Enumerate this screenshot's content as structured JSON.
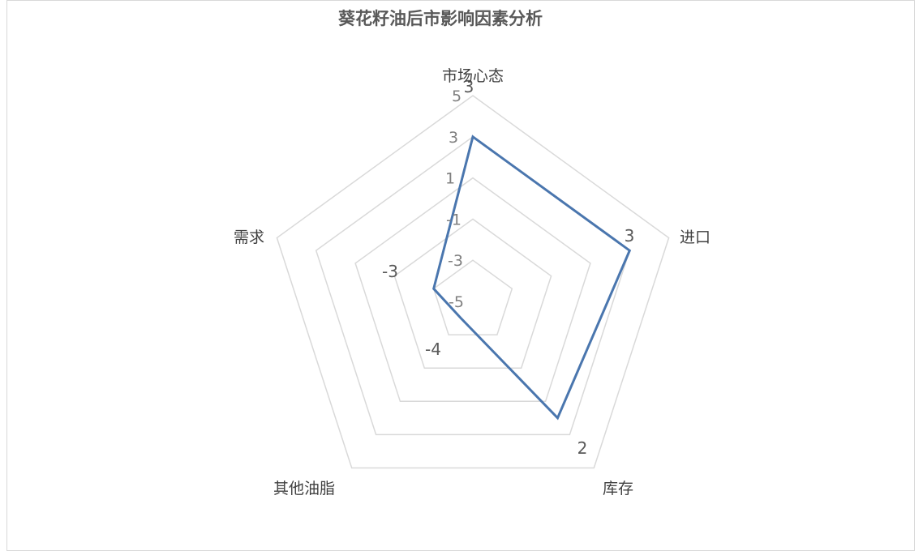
{
  "chart_data": {
    "type": "radar",
    "title": "葵花籽油后市影响因素分析",
    "categories": [
      "市场心态",
      "进口",
      "库存",
      "其他油脂",
      "需求"
    ],
    "series": [
      {
        "values": [
          3,
          3,
          2,
          -4,
          -3
        ],
        "color": "#4a76ae"
      }
    ],
    "radial_axis": {
      "min": -5,
      "max": 5,
      "step": 2,
      "tick_labels": [
        "-5",
        "-3",
        "-1",
        "1",
        "3",
        "5"
      ]
    },
    "data_labels": [
      "3",
      "3",
      "2",
      "-4",
      "-3"
    ],
    "grid": true,
    "grid_color": "#d9d9d9"
  }
}
